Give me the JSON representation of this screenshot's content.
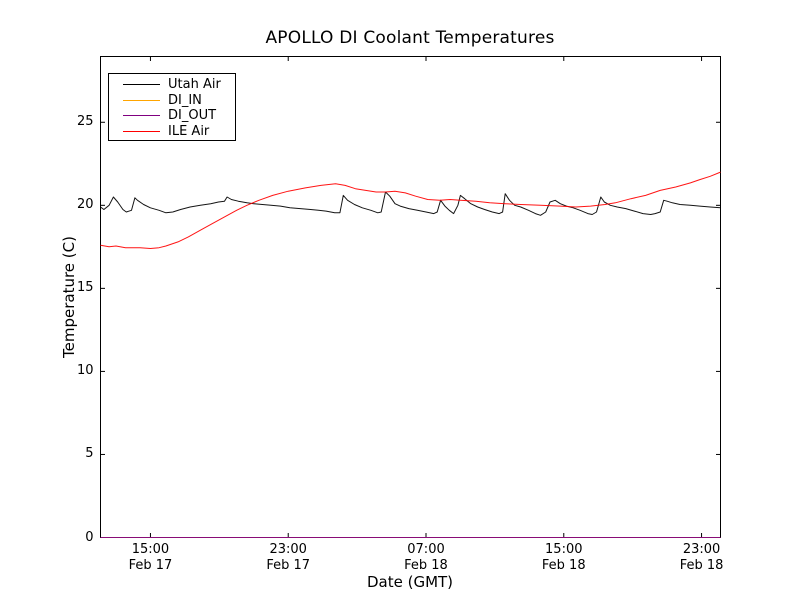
{
  "figure": {
    "background": "#ffffff",
    "frame_color": "#000000"
  },
  "chart_data": {
    "type": "line",
    "title": "APOLLO DI Coolant Temperatures",
    "xlabel": "Date (GMT)",
    "ylabel": "Temperature (C)",
    "x_unit": "hours since Feb 17 00:00 GMT",
    "xlim": [
      12.1,
      48.1
    ],
    "ylim": [
      0,
      28.96
    ],
    "grid": false,
    "legend_position": "upper left",
    "yticks": [
      0,
      5,
      10,
      15,
      20,
      25
    ],
    "xticks": [
      {
        "hours": 15,
        "time": "15:00",
        "date": "Feb 17"
      },
      {
        "hours": 23,
        "time": "23:00",
        "date": "Feb 17"
      },
      {
        "hours": 31,
        "time": "07:00",
        "date": "Feb 18"
      },
      {
        "hours": 39,
        "time": "15:00",
        "date": "Feb 18"
      },
      {
        "hours": 47,
        "time": "23:00",
        "date": "Feb 18"
      }
    ],
    "series": [
      {
        "name": "Utah Air",
        "color": "#000000",
        "points": [
          [
            12.1,
            19.9
          ],
          [
            12.3,
            19.75
          ],
          [
            12.6,
            20.0
          ],
          [
            12.85,
            20.5
          ],
          [
            13.1,
            20.2
          ],
          [
            13.4,
            19.75
          ],
          [
            13.6,
            19.6
          ],
          [
            13.9,
            19.7
          ],
          [
            14.1,
            20.45
          ],
          [
            14.25,
            20.3
          ],
          [
            14.6,
            20.05
          ],
          [
            15.0,
            19.85
          ],
          [
            15.5,
            19.7
          ],
          [
            15.9,
            19.55
          ],
          [
            16.3,
            19.6
          ],
          [
            16.75,
            19.75
          ],
          [
            17.3,
            19.9
          ],
          [
            17.9,
            20.0
          ],
          [
            18.5,
            20.1
          ],
          [
            18.95,
            20.2
          ],
          [
            19.3,
            20.25
          ],
          [
            19.45,
            20.5
          ],
          [
            19.7,
            20.35
          ],
          [
            20.1,
            20.25
          ],
          [
            20.6,
            20.15
          ],
          [
            21.0,
            20.1
          ],
          [
            21.5,
            20.05
          ],
          [
            22.0,
            20.0
          ],
          [
            22.55,
            19.95
          ],
          [
            23.1,
            19.85
          ],
          [
            23.7,
            19.8
          ],
          [
            24.3,
            19.75
          ],
          [
            24.75,
            19.7
          ],
          [
            25.2,
            19.65
          ],
          [
            25.7,
            19.55
          ],
          [
            26.0,
            19.55
          ],
          [
            26.2,
            20.6
          ],
          [
            26.45,
            20.3
          ],
          [
            26.85,
            20.05
          ],
          [
            27.3,
            19.85
          ],
          [
            27.8,
            19.7
          ],
          [
            28.2,
            19.55
          ],
          [
            28.4,
            19.6
          ],
          [
            28.65,
            20.8
          ],
          [
            28.9,
            20.55
          ],
          [
            29.2,
            20.1
          ],
          [
            29.5,
            19.95
          ],
          [
            30.0,
            19.8
          ],
          [
            30.5,
            19.7
          ],
          [
            31.0,
            19.6
          ],
          [
            31.45,
            19.5
          ],
          [
            31.65,
            19.6
          ],
          [
            31.85,
            20.3
          ],
          [
            32.1,
            19.95
          ],
          [
            32.35,
            19.7
          ],
          [
            32.6,
            19.5
          ],
          [
            32.85,
            20.0
          ],
          [
            33.0,
            20.6
          ],
          [
            33.25,
            20.4
          ],
          [
            33.6,
            20.1
          ],
          [
            34.0,
            19.9
          ],
          [
            34.4,
            19.75
          ],
          [
            34.85,
            19.6
          ],
          [
            35.25,
            19.5
          ],
          [
            35.45,
            19.6
          ],
          [
            35.6,
            20.7
          ],
          [
            35.85,
            20.3
          ],
          [
            36.15,
            20.0
          ],
          [
            36.5,
            19.9
          ],
          [
            36.95,
            19.7
          ],
          [
            37.35,
            19.5
          ],
          [
            37.65,
            19.4
          ],
          [
            37.95,
            19.6
          ],
          [
            38.2,
            20.2
          ],
          [
            38.5,
            20.3
          ],
          [
            38.8,
            20.1
          ],
          [
            39.15,
            19.95
          ],
          [
            39.55,
            19.85
          ],
          [
            39.95,
            19.7
          ],
          [
            40.4,
            19.5
          ],
          [
            40.65,
            19.45
          ],
          [
            40.9,
            19.6
          ],
          [
            41.15,
            20.5
          ],
          [
            41.35,
            20.2
          ],
          [
            41.7,
            20.0
          ],
          [
            42.1,
            19.9
          ],
          [
            42.6,
            19.8
          ],
          [
            43.1,
            19.65
          ],
          [
            43.6,
            19.5
          ],
          [
            44.05,
            19.45
          ],
          [
            44.3,
            19.5
          ],
          [
            44.6,
            19.6
          ],
          [
            44.8,
            20.3
          ],
          [
            45.0,
            20.25
          ],
          [
            45.3,
            20.15
          ],
          [
            45.75,
            20.05
          ],
          [
            46.35,
            20.0
          ],
          [
            46.9,
            19.95
          ],
          [
            47.5,
            19.9
          ],
          [
            48.1,
            19.85
          ]
        ]
      },
      {
        "name": "DI_IN",
        "color": "#ffa500",
        "points": [
          [
            12.1,
            0
          ],
          [
            48.1,
            0
          ]
        ]
      },
      {
        "name": "DI_OUT",
        "color": "#800080",
        "points": [
          [
            12.1,
            0
          ],
          [
            48.1,
            0
          ]
        ]
      },
      {
        "name": "ILE Air",
        "color": "#ff0000",
        "points": [
          [
            12.1,
            17.6
          ],
          [
            12.6,
            17.5
          ],
          [
            13.0,
            17.55
          ],
          [
            13.55,
            17.45
          ],
          [
            14.4,
            17.45
          ],
          [
            15.0,
            17.4
          ],
          [
            15.5,
            17.45
          ],
          [
            15.9,
            17.55
          ],
          [
            16.6,
            17.8
          ],
          [
            17.2,
            18.1
          ],
          [
            17.9,
            18.5
          ],
          [
            18.6,
            18.9
          ],
          [
            19.3,
            19.3
          ],
          [
            20.0,
            19.7
          ],
          [
            20.6,
            20.0
          ],
          [
            21.3,
            20.3
          ],
          [
            22.1,
            20.6
          ],
          [
            23.0,
            20.85
          ],
          [
            24.0,
            21.05
          ],
          [
            24.9,
            21.2
          ],
          [
            25.75,
            21.3
          ],
          [
            26.3,
            21.2
          ],
          [
            26.9,
            21.0
          ],
          [
            27.5,
            20.9
          ],
          [
            28.1,
            20.8
          ],
          [
            28.65,
            20.8
          ],
          [
            29.2,
            20.85
          ],
          [
            29.8,
            20.75
          ],
          [
            30.4,
            20.55
          ],
          [
            31.1,
            20.35
          ],
          [
            31.8,
            20.3
          ],
          [
            32.4,
            20.35
          ],
          [
            33.0,
            20.3
          ],
          [
            33.9,
            20.25
          ],
          [
            34.7,
            20.15
          ],
          [
            35.6,
            20.1
          ],
          [
            36.5,
            20.05
          ],
          [
            37.65,
            20.0
          ],
          [
            38.8,
            19.95
          ],
          [
            39.7,
            19.9
          ],
          [
            40.55,
            19.95
          ],
          [
            41.4,
            20.05
          ],
          [
            42.0,
            20.15
          ],
          [
            42.9,
            20.4
          ],
          [
            43.75,
            20.6
          ],
          [
            44.6,
            20.9
          ],
          [
            45.5,
            21.1
          ],
          [
            46.35,
            21.35
          ],
          [
            46.9,
            21.55
          ],
          [
            47.5,
            21.75
          ],
          [
            48.1,
            22.0
          ]
        ]
      }
    ]
  }
}
